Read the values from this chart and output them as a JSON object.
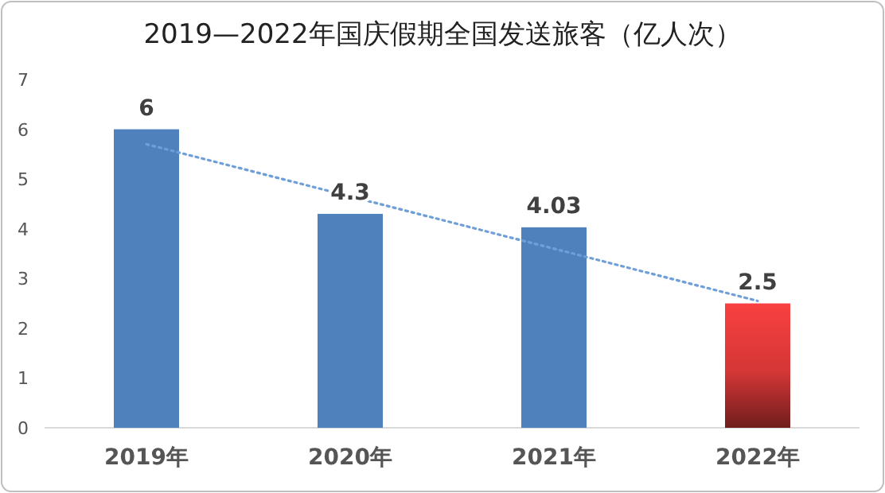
{
  "chart_data": {
    "type": "bar",
    "title": "2019—2022年国庆假期全国发送旅客（亿人次）",
    "categories": [
      "2019年",
      "2020年",
      "2021年",
      "2022年"
    ],
    "series": [
      {
        "colors": [
          "#4f81bd",
          "#4f81bd",
          "#4f81bd",
          "#f94040"
        ],
        "values": [
          6,
          4.3,
          4.03,
          2.5
        ],
        "value_labels": [
          "6",
          "4.3",
          "4.03",
          "2.5"
        ]
      },
      {
        "type": "line",
        "x": [
          "2019年",
          "2022年"
        ],
        "values": [
          5.7,
          2.55
        ],
        "color": "#6f9fd8",
        "line_style": "dotted"
      }
    ],
    "ylim": [
      0,
      7
    ],
    "yticks": [
      0,
      1,
      2,
      3,
      4,
      5,
      6,
      7
    ],
    "grid": false
  }
}
